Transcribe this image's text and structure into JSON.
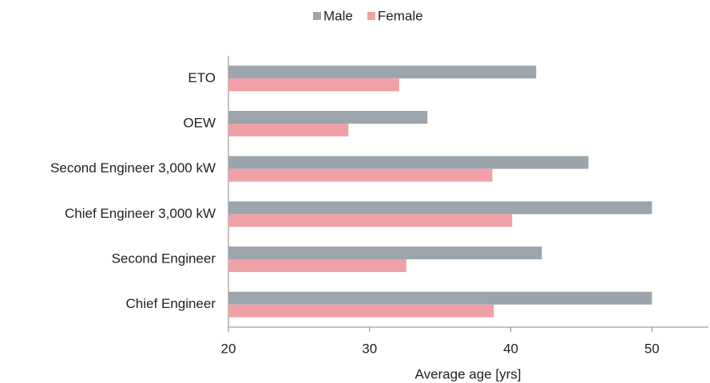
{
  "chart_data": {
    "type": "bar",
    "orientation": "horizontal",
    "x_label": "Average age [yrs]",
    "categories": [
      "ETO",
      "OEW",
      "Second Engineer 3,000 kW",
      "Chief Engineer 3,000 kW",
      "Second Engineer",
      "Chief Engineer"
    ],
    "series": [
      {
        "name": "Male",
        "color": "#9ba5ab",
        "values": [
          41.8,
          34.1,
          45.5,
          50.0,
          42.2,
          50.0
        ]
      },
      {
        "name": "Female",
        "color": "#f0a1a7",
        "values": [
          32.1,
          28.5,
          38.7,
          40.1,
          32.6,
          38.8
        ]
      }
    ],
    "xlim": [
      20,
      54
    ],
    "xticks": [
      20,
      30,
      40,
      50
    ],
    "legend": "top"
  }
}
